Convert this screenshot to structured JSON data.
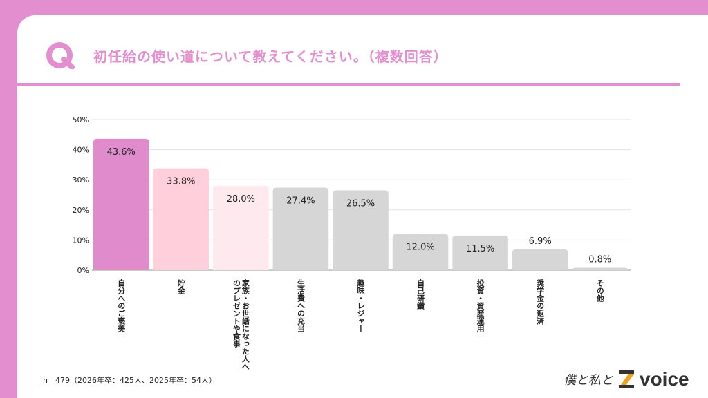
{
  "header": {
    "title": "初任給の使い道について教えてください。（複数回答）",
    "icon": "q-icon"
  },
  "colors": {
    "accent": "#e38fcf",
    "bar1": "#e08ccc",
    "bar2": "#ffcfdb",
    "bar3": "#fde9ee",
    "other": "#d6d6d6"
  },
  "chart_data": {
    "type": "bar",
    "categories": [
      "自分へのご褒美",
      "貯金",
      "家族・お世話になった人へのプレゼントや食事",
      "生活費への充当",
      "趣味・レジャー",
      "自己研鑽",
      "投資・資産運用",
      "奨学金の返済",
      "その他"
    ],
    "values": [
      43.6,
      33.8,
      28.0,
      27.4,
      26.5,
      12.0,
      11.5,
      6.9,
      0.8
    ],
    "value_labels": [
      "43.6%",
      "33.8%",
      "28.0%",
      "27.4%",
      "26.5%",
      "12.0%",
      "11.5%",
      "6.9%",
      "0.8%"
    ],
    "yticks": [
      "0%",
      "10%",
      "20%",
      "30%",
      "40%",
      "50%"
    ],
    "ylim": [
      0,
      50
    ],
    "grid": true
  },
  "footer": {
    "note": "n＝479（2026年卒：425人、2025年卒：54人）",
    "logo_hand": "僕と私と",
    "logo_brand": "voice"
  }
}
